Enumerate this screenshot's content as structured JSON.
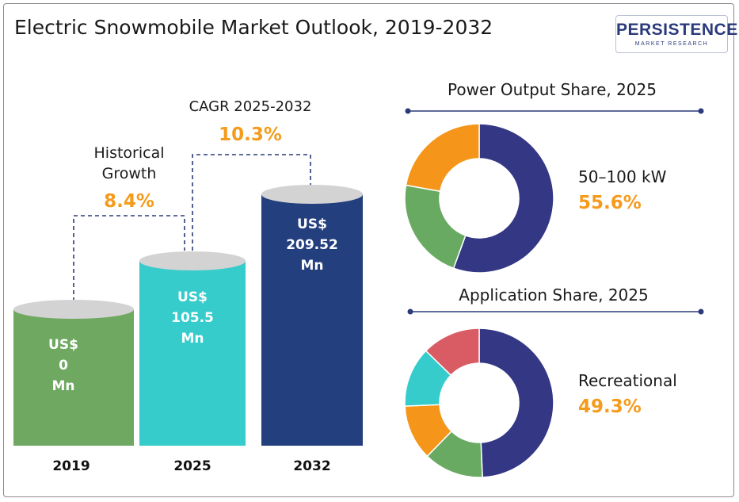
{
  "header": {
    "title": "Electric Snowmobile Market Outlook, 2019-2032",
    "logo_text": "PERSISTENCE",
    "logo_sub": "MARKET RESEARCH"
  },
  "colors": {
    "bar_2019": "#6fa861",
    "bar_2025": "#35cccb",
    "bar_2032": "#243f7e",
    "accent": "#f59b1c",
    "donut_navy": "#333784",
    "donut_green": "#69aa63",
    "donut_orange": "#f5961a",
    "donut_teal": "#35cccb",
    "donut_red": "#d95b63"
  },
  "chart_data": [
    {
      "type": "bar",
      "categories": [
        "2019",
        "2025",
        "2032"
      ],
      "values": [
        0,
        105.5,
        209.52
      ],
      "value_labels": [
        [
          "US$",
          "0",
          "Mn"
        ],
        [
          "US$",
          "105.5",
          "Mn"
        ],
        [
          "US$",
          "209.52",
          "Mn"
        ]
      ],
      "annotations": [
        {
          "label_lines": [
            "Historical",
            "Growth"
          ],
          "value": "8.4%"
        },
        {
          "label_lines": [
            "CAGR 2025-2032"
          ],
          "value": "10.3%"
        }
      ]
    },
    {
      "type": "pie",
      "title": "Power Output Share, 2025",
      "values": [
        55.6,
        22.2,
        22.2
      ],
      "colors": [
        "donut_navy",
        "donut_green",
        "donut_orange"
      ],
      "highlight_label": "50–100 kW",
      "highlight_value": "55.6%"
    },
    {
      "type": "pie",
      "title": "Application Share, 2025",
      "values": [
        49.3,
        13.0,
        12.0,
        13.0,
        12.7
      ],
      "colors": [
        "donut_navy",
        "donut_green",
        "donut_orange",
        "donut_teal",
        "donut_red"
      ],
      "highlight_label": "Recreational",
      "highlight_value": "49.3%"
    }
  ]
}
